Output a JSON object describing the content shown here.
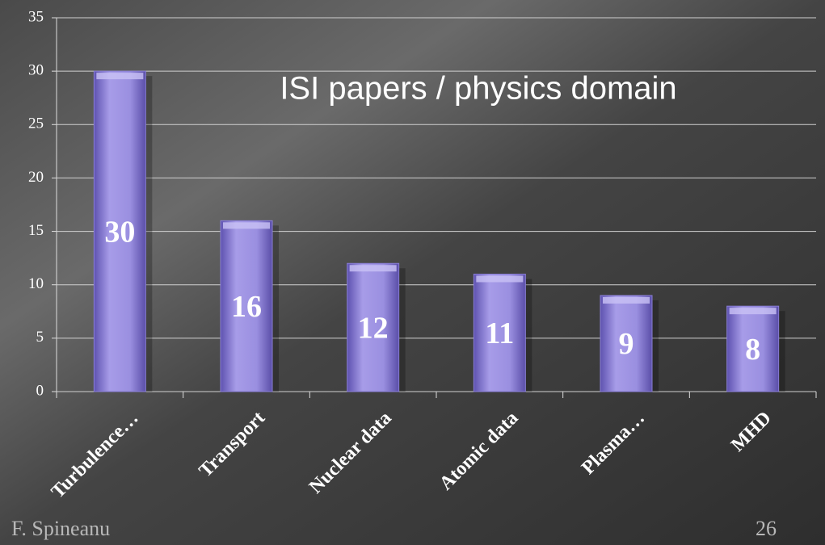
{
  "chart_data": {
    "type": "bar",
    "title": "ISI papers / physics domain",
    "categories": [
      "Turbulence…",
      "Transport",
      "Nuclear data",
      "Atomic data",
      "Plasma…",
      "MHD"
    ],
    "values": [
      30,
      16,
      12,
      11,
      9,
      8
    ],
    "color": "#8a7fd6",
    "ylim": [
      0,
      35
    ],
    "yticks": [
      0,
      5,
      10,
      15,
      20,
      25,
      30,
      35
    ],
    "grid": true
  },
  "footer": {
    "author": "F. Spineanu",
    "page": "26"
  }
}
